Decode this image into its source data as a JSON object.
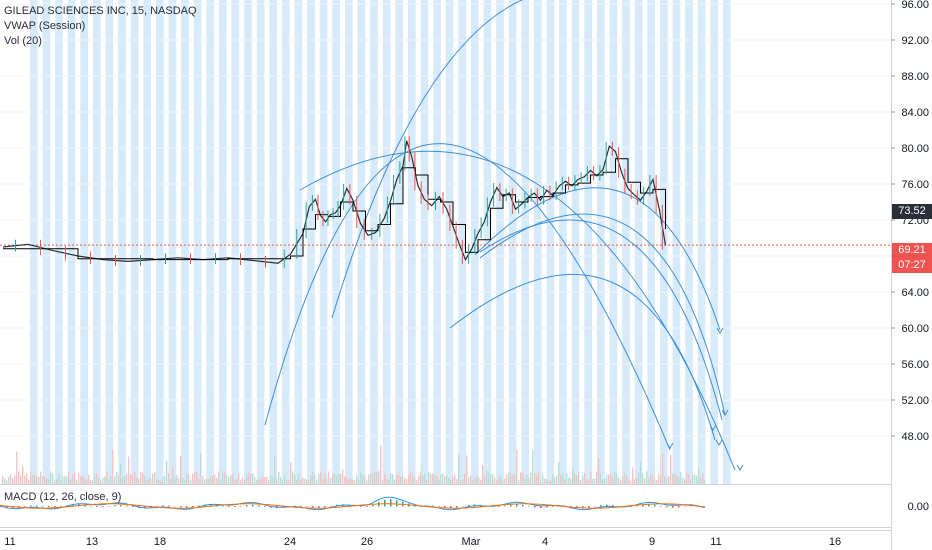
{
  "legend": {
    "title": "GILEAD SCIENCES INC, 15, NASDAQ",
    "indicator1": "VWAP (Session)",
    "indicator2": "Vol (20)"
  },
  "macd": {
    "label": "MACD (12, 26, close, 9)",
    "zero_label": "0.00"
  },
  "price_tags": {
    "last_close": "73.52",
    "current_price": "69.21",
    "countdown": "07:27"
  },
  "colors": {
    "price_line": "#2a2e39",
    "vwap": "#000000",
    "up": "#26a69a",
    "down": "#ef5350",
    "session_band": "#d6eaf9",
    "arc": "#3d8fdc",
    "current_line": "#ef5350"
  },
  "chart_data": {
    "type": "candlestick",
    "symbol": "GILEAD SCIENCES INC",
    "interval": "15",
    "exchange": "NASDAQ",
    "y_axis": {
      "ticks": [
        "96.00",
        "92.00",
        "88.00",
        "84.00",
        "80.00",
        "76.00",
        "72.00",
        "68.00",
        "64.00",
        "60.00",
        "56.00",
        "52.00",
        "48.00"
      ],
      "range": [
        44,
        96
      ]
    },
    "x_axis": {
      "ticks": [
        "11",
        "13",
        "18",
        "24",
        "26",
        "Mar",
        "4",
        "9",
        "11",
        "16"
      ]
    },
    "price_path": [
      [
        0,
        69.0
      ],
      [
        2,
        69.3
      ],
      [
        4,
        68.6
      ],
      [
        6,
        68.0
      ],
      [
        8,
        67.6
      ],
      [
        10,
        67.4
      ],
      [
        12,
        67.6
      ],
      [
        14,
        67.8
      ],
      [
        16,
        67.6
      ],
      [
        18,
        67.8
      ],
      [
        20,
        67.5
      ],
      [
        22,
        67.2
      ],
      [
        23,
        68.2
      ],
      [
        24,
        70.5
      ],
      [
        24.5,
        73.5
      ],
      [
        25,
        74.3
      ],
      [
        25.4,
        72.5
      ],
      [
        25.8,
        71.8
      ],
      [
        26.2,
        72.6
      ],
      [
        26.6,
        72.8
      ],
      [
        27,
        73.6
      ],
      [
        27.5,
        75.5
      ],
      [
        28,
        74.2
      ],
      [
        28.6,
        71.6
      ],
      [
        29.2,
        70.3
      ],
      [
        29.8,
        70.6
      ],
      [
        30.5,
        72.2
      ],
      [
        31,
        74.1
      ],
      [
        31.5,
        76.5
      ],
      [
        32,
        78.0
      ],
      [
        32.3,
        80.8
      ],
      [
        32.7,
        79.0
      ],
      [
        33.2,
        75.8
      ],
      [
        33.7,
        74.3
      ],
      [
        34.3,
        73.6
      ],
      [
        34.9,
        74.6
      ],
      [
        35.5,
        73.2
      ],
      [
        36,
        71.3
      ],
      [
        36.5,
        69.3
      ],
      [
        37,
        67.6
      ],
      [
        37.5,
        68.8
      ],
      [
        38,
        70.5
      ],
      [
        38.5,
        71.8
      ],
      [
        39,
        74.0
      ],
      [
        39.5,
        75.6
      ],
      [
        40,
        74.6
      ],
      [
        40.5,
        75.0
      ],
      [
        41,
        73.2
      ],
      [
        41.5,
        73.8
      ],
      [
        42,
        74.5
      ],
      [
        42.5,
        75.0
      ],
      [
        43,
        74.2
      ],
      [
        43.5,
        75.3
      ],
      [
        44,
        74.7
      ],
      [
        44.5,
        75.8
      ],
      [
        45,
        76.3
      ],
      [
        45.5,
        75.8
      ],
      [
        46,
        76.5
      ],
      [
        46.5,
        76.8
      ],
      [
        47,
        77.5
      ],
      [
        47.5,
        76.9
      ],
      [
        48,
        77.6
      ],
      [
        48.5,
        80.2
      ],
      [
        49,
        79.6
      ],
      [
        49.5,
        77.2
      ],
      [
        50,
        75.5
      ],
      [
        50.5,
        74.8
      ],
      [
        51,
        74.2
      ],
      [
        51.5,
        75.2
      ],
      [
        52,
        76.5
      ],
      [
        52.5,
        73.2
      ],
      [
        53,
        69.21
      ]
    ],
    "vwap_path": [
      [
        0,
        68.8
      ],
      [
        6,
        67.7
      ],
      [
        12,
        67.6
      ],
      [
        18,
        67.7
      ],
      [
        23,
        68.0
      ],
      [
        24,
        71.0
      ],
      [
        25,
        72.6
      ],
      [
        26,
        72.4
      ],
      [
        27,
        74.0
      ],
      [
        28,
        73.0
      ],
      [
        29,
        70.8
      ],
      [
        30,
        71.5
      ],
      [
        31,
        73.8
      ],
      [
        32,
        77.8
      ],
      [
        33,
        77.0
      ],
      [
        34,
        74.3
      ],
      [
        35,
        74.0
      ],
      [
        36,
        71.5
      ],
      [
        37,
        68.4
      ],
      [
        38,
        69.8
      ],
      [
        39,
        73.3
      ],
      [
        40,
        74.8
      ],
      [
        41,
        74.0
      ],
      [
        42,
        74.5
      ],
      [
        43,
        74.6
      ],
      [
        44,
        75.0
      ],
      [
        45,
        75.9
      ],
      [
        46,
        76.1
      ],
      [
        47,
        77.0
      ],
      [
        48,
        77.3
      ],
      [
        49,
        78.8
      ],
      [
        50,
        76.2
      ],
      [
        51,
        75.0
      ],
      [
        52,
        75.4
      ],
      [
        53,
        71.0
      ]
    ],
    "current_price": 69.21,
    "last_close": 73.52,
    "macd_range": [
      -1,
      1
    ]
  }
}
